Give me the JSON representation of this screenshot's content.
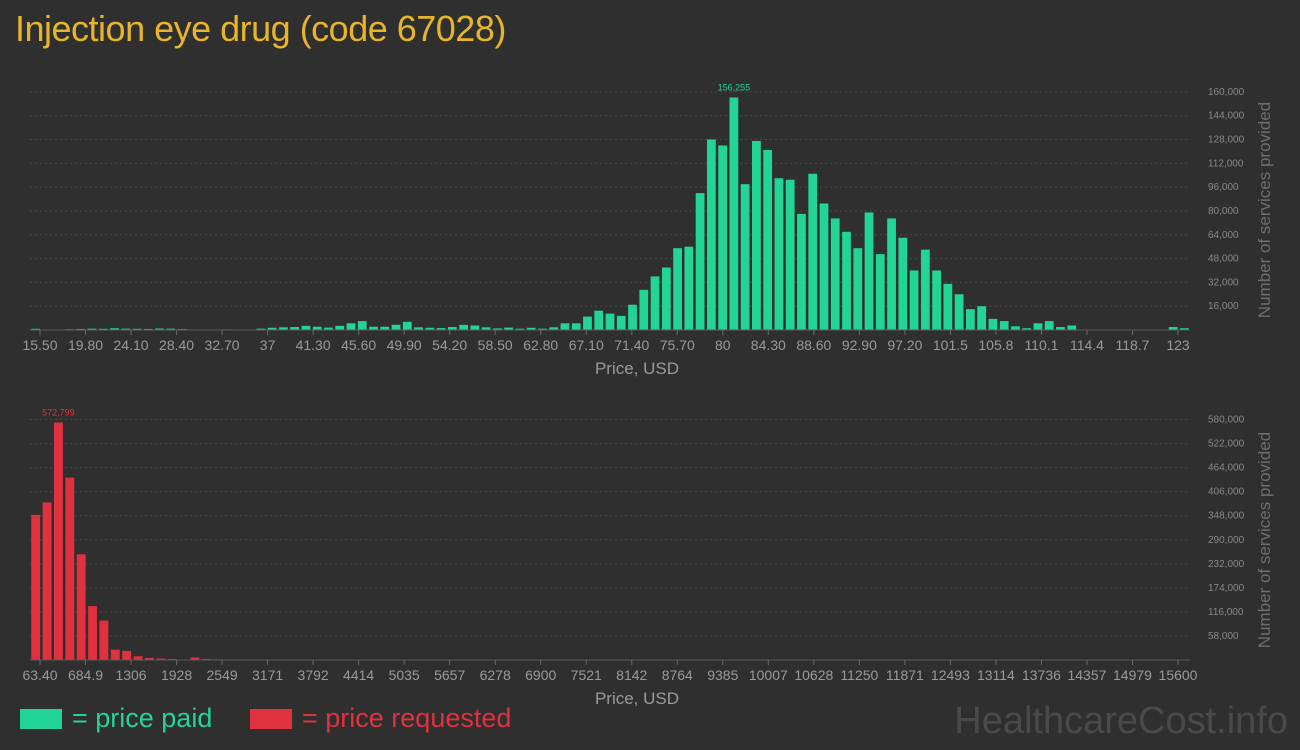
{
  "title": "Injection eye drug (code 67028)",
  "colors": {
    "paid": "#22d496",
    "requested": "#e0313f",
    "title": "#e8b52a"
  },
  "legend": {
    "paid": "= price paid",
    "requested": "= price requested"
  },
  "watermark": "HealthcareCost.info",
  "chart_data": [
    {
      "type": "bar",
      "xlabel": "Price, USD",
      "ylabel": "Number of services provided",
      "ylim": [
        0,
        168000
      ],
      "yticks": [
        "16,000",
        "32,000",
        "48,000",
        "64,000",
        "80,000",
        "96,000",
        "112,000",
        "128,000",
        "144,000",
        "160,000"
      ],
      "ytick_values": [
        16000,
        32000,
        48000,
        64000,
        80000,
        96000,
        112000,
        128000,
        144000,
        160000
      ],
      "xticks": [
        "15.50",
        "19.80",
        "24.10",
        "28.40",
        "32.70",
        "37",
        "41.30",
        "45.60",
        "49.90",
        "54.20",
        "58.50",
        "62.80",
        "67.10",
        "71.40",
        "75.70",
        "80",
        "84.30",
        "88.60",
        "92.90",
        "97.20",
        "101.5",
        "105.8",
        "110.1",
        "114.4",
        "118.7",
        "123"
      ],
      "peak_label": "156,255",
      "grid": true,
      "values": [
        800,
        0,
        0,
        500,
        700,
        900,
        800,
        1200,
        900,
        800,
        700,
        1000,
        900,
        600,
        0,
        0,
        300,
        400,
        0,
        200,
        900,
        1500,
        1800,
        2000,
        2800,
        2200,
        1600,
        2800,
        4500,
        6000,
        2200,
        2200,
        3500,
        5500,
        1800,
        1500,
        1300,
        2000,
        3500,
        3000,
        1800,
        1100,
        1600,
        900,
        1500,
        900,
        1800,
        4500,
        4500,
        9000,
        13000,
        11000,
        9500,
        17000,
        27000,
        36000,
        42000,
        55000,
        56000,
        92000,
        128000,
        124000,
        156255,
        98000,
        127000,
        121000,
        102000,
        101000,
        78000,
        105000,
        85000,
        75000,
        66000,
        55000,
        79000,
        51000,
        75000,
        62000,
        40000,
        54000,
        40000,
        31000,
        24000,
        14000,
        16000,
        7500,
        6000,
        2500,
        1200,
        4500,
        6000,
        2000,
        3000,
        0,
        0,
        0,
        0,
        0,
        0,
        0,
        0,
        2000,
        1200
      ],
      "series": [
        {
          "values_ref": "values"
        }
      ]
    },
    {
      "type": "bar",
      "xlabel": "Price, USD",
      "ylabel": "Number of services provided",
      "ylim": [
        0,
        603000
      ],
      "yticks": [
        "58,000",
        "116,000",
        "174,000",
        "232,000",
        "290,000",
        "348,000",
        "406,000",
        "464,000",
        "522,000",
        "580,000"
      ],
      "ytick_values": [
        58000,
        116000,
        174000,
        232000,
        290000,
        348000,
        406000,
        464000,
        522000,
        580000
      ],
      "xticks": [
        "63.40",
        "684.9",
        "1306",
        "1928",
        "2549",
        "3171",
        "3792",
        "4414",
        "5035",
        "5657",
        "6278",
        "6900",
        "7521",
        "8142",
        "8764",
        "9385",
        "10007",
        "10628",
        "11250",
        "11871",
        "12493",
        "13114",
        "13736",
        "14357",
        "14979",
        "15600"
      ],
      "peak_label": "572,799",
      "grid": true,
      "values": [
        350000,
        380000,
        572799,
        440000,
        255000,
        130000,
        95000,
        25000,
        22000,
        9000,
        5000,
        3500,
        2500,
        0,
        6000,
        2500,
        1500,
        1200,
        0,
        0,
        0,
        0,
        0,
        0,
        0,
        0,
        0,
        0,
        0,
        0,
        0,
        0,
        0,
        0,
        0,
        0,
        0,
        0,
        0,
        0,
        0,
        0,
        0,
        0,
        0,
        0,
        0,
        0,
        0,
        0,
        0,
        0,
        0,
        0,
        0,
        0,
        0,
        0,
        0,
        0,
        0,
        0,
        0,
        0,
        0,
        0,
        0,
        0,
        0,
        0,
        0,
        0,
        0,
        0,
        0,
        0,
        0,
        0,
        0,
        0,
        0,
        0,
        0,
        0,
        0,
        0,
        0,
        0,
        0,
        0,
        0,
        0,
        0,
        0,
        0,
        0,
        0,
        0,
        0,
        0,
        0,
        500
      ],
      "series": [
        {
          "values_ref": "values"
        }
      ]
    }
  ]
}
